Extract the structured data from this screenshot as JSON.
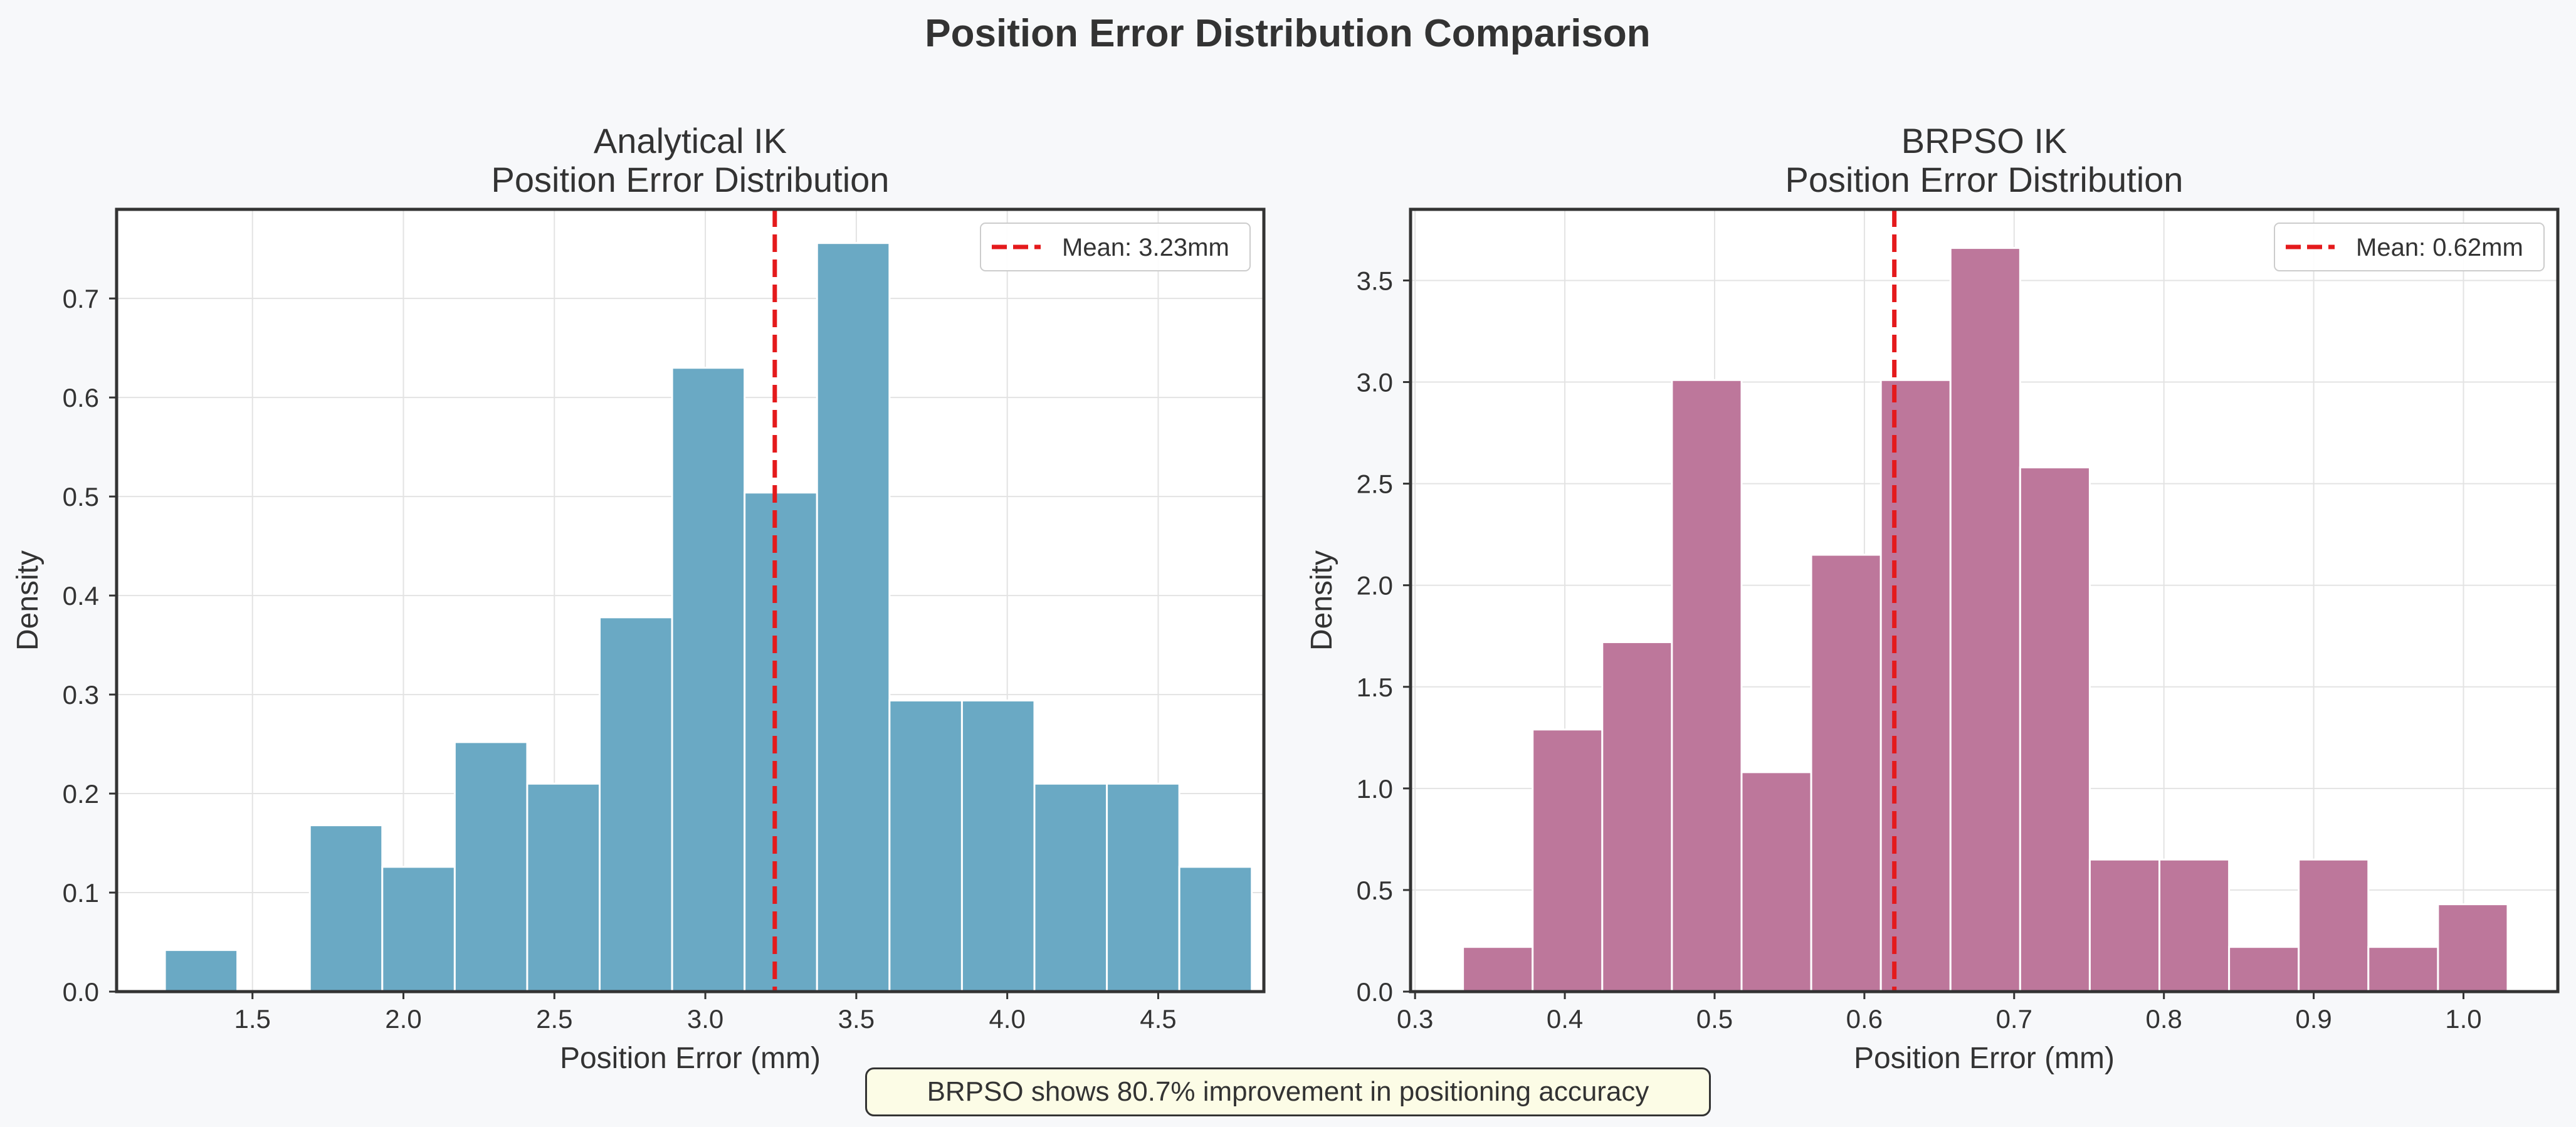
{
  "figure": {
    "title": "Position Error Distribution Comparison",
    "annotation": "BRPSO shows 80.7% improvement in positioning accuracy"
  },
  "colors": {
    "background": "#f7f8fa",
    "left_bars": "#6aa9c4",
    "right_bars": "#bd779b",
    "mean_line": "#e41a1c",
    "text": "#333333"
  },
  "chart_data": [
    {
      "type": "bar",
      "title": "Analytical IK\nPosition Error Distribution",
      "xlabel": "Position Error (mm)",
      "ylabel": "Density",
      "xlim": [
        1.05,
        4.85
      ],
      "ylim": [
        0,
        0.79
      ],
      "xticks": [
        1.5,
        2.0,
        2.5,
        3.0,
        3.5,
        4.0,
        4.5
      ],
      "xtick_labels": [
        "1.5",
        "2.0",
        "2.5",
        "3.0",
        "3.5",
        "4.0",
        "4.5"
      ],
      "yticks": [
        0.0,
        0.1,
        0.2,
        0.3,
        0.4,
        0.5,
        0.6,
        0.7
      ],
      "ytick_labels": [
        "0.0",
        "0.1",
        "0.2",
        "0.3",
        "0.4",
        "0.5",
        "0.6",
        "0.7"
      ],
      "bin_edges": [
        1.21,
        1.45,
        1.69,
        1.93,
        2.17,
        2.41,
        2.65,
        2.89,
        3.13,
        3.37,
        3.61,
        3.85,
        4.09,
        4.33,
        4.57,
        4.81
      ],
      "values": [
        0.042,
        0.0,
        0.168,
        0.126,
        0.252,
        0.21,
        0.378,
        0.63,
        0.504,
        0.756,
        0.294,
        0.294,
        0.21,
        0.21,
        0.126
      ],
      "mean": 3.23,
      "legend": "Mean: 3.23mm",
      "legend_position": "top-right",
      "grid": true
    },
    {
      "type": "bar",
      "title": "BRPSO IK\nPosition Error Distribution",
      "xlabel": "Position Error (mm)",
      "ylabel": "Density",
      "xlim": [
        0.297,
        1.063
      ],
      "ylim": [
        0,
        3.85
      ],
      "xticks": [
        0.3,
        0.4,
        0.5,
        0.6,
        0.7,
        0.8,
        0.9,
        1.0
      ],
      "xtick_labels": [
        "0.3",
        "0.4",
        "0.5",
        "0.6",
        "0.7",
        "0.8",
        "0.9",
        "1.0"
      ],
      "yticks": [
        0.0,
        0.5,
        1.0,
        1.5,
        2.0,
        2.5,
        3.0,
        3.5
      ],
      "ytick_labels": [
        "0.0",
        "0.5",
        "1.0",
        "1.5",
        "2.0",
        "2.5",
        "3.0",
        "3.5"
      ],
      "bin_edges": [
        0.332,
        0.3785,
        0.425,
        0.4715,
        0.518,
        0.5645,
        0.611,
        0.6575,
        0.704,
        0.7505,
        0.797,
        0.8435,
        0.89,
        0.9365,
        0.983,
        1.0295
      ],
      "values": [
        0.22,
        1.29,
        1.72,
        3.01,
        1.08,
        2.15,
        3.01,
        3.66,
        2.58,
        0.65,
        0.65,
        0.22,
        0.65,
        0.22,
        0.43
      ],
      "mean": 0.62,
      "legend": "Mean: 0.62mm",
      "legend_position": "top-right",
      "grid": true
    }
  ]
}
